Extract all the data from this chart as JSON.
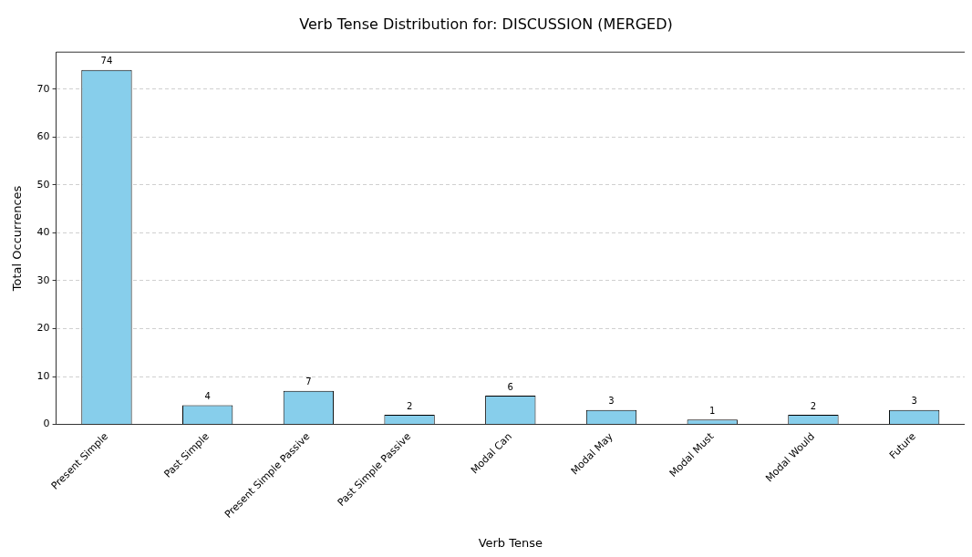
{
  "chart_data": {
    "type": "bar",
    "title": "Verb Tense Distribution for: DISCUSSION (MERGED)",
    "xlabel": "Verb Tense",
    "ylabel": "Total Occurrences",
    "categories": [
      "Present Simple",
      "Past Simple",
      "Present Simple Passive",
      "Past Simple Passive",
      "Modal Can",
      "Modal May",
      "Modal Must",
      "Modal Would",
      "Future"
    ],
    "values": [
      74,
      4,
      7,
      2,
      6,
      3,
      1,
      2,
      3
    ],
    "color": "#87ceeb",
    "ylim": [
      0,
      77.7
    ],
    "yticks": [
      0,
      10,
      20,
      30,
      40,
      50,
      60,
      70
    ],
    "grid": "y",
    "data_labels": true,
    "legend": false
  }
}
